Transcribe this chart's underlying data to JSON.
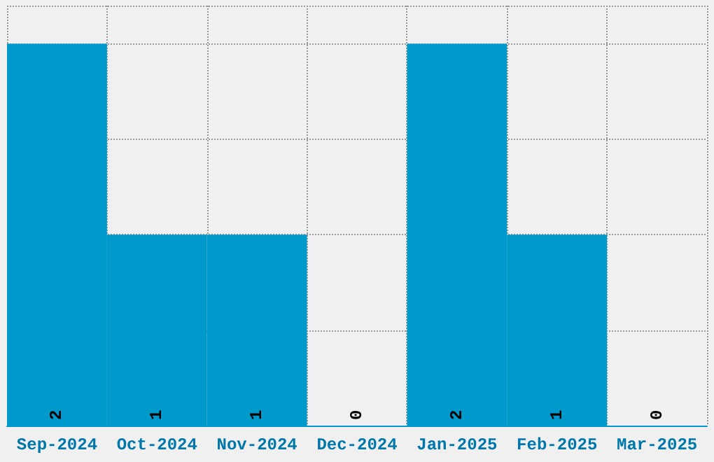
{
  "chart_data": {
    "type": "bar",
    "categories": [
      "Sep-2024",
      "Oct-2024",
      "Nov-2024",
      "Dec-2024",
      "Jan-2025",
      "Feb-2025",
      "Mar-2025"
    ],
    "values": [
      2,
      1,
      1,
      0,
      2,
      1,
      0
    ],
    "color": "#0099cc",
    "data_labels": true,
    "grid": true,
    "tick_labels": "x"
  }
}
